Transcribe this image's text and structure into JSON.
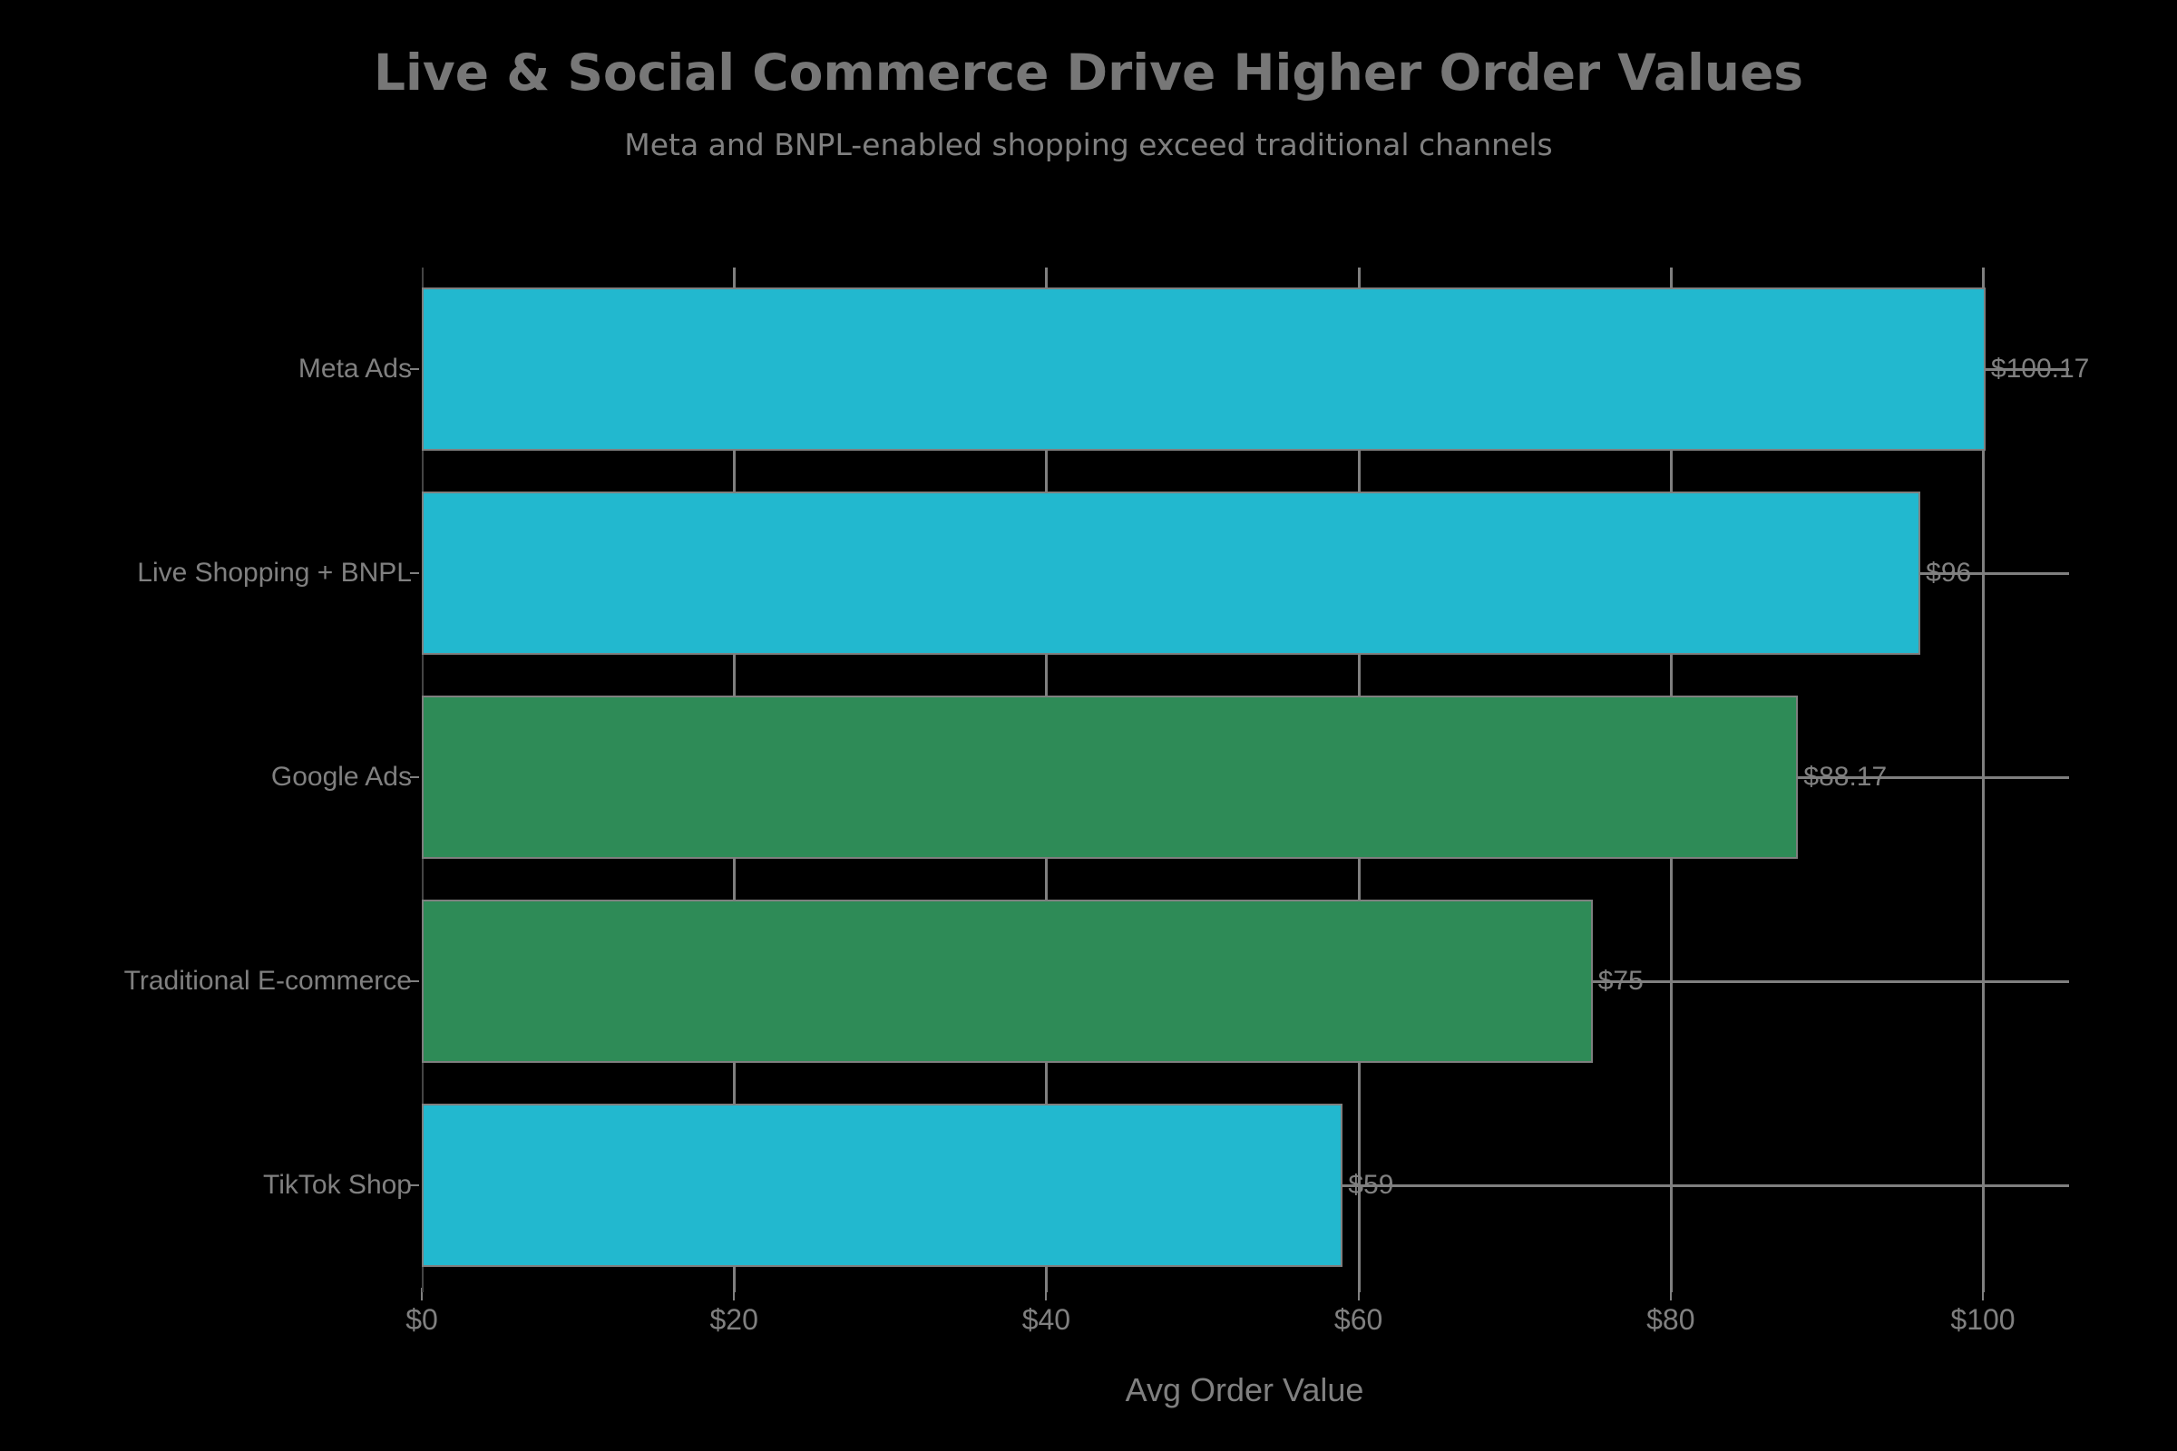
{
  "chart_data": {
    "type": "bar",
    "orientation": "horizontal",
    "title": "Live & Social Commerce Drive Higher Order Values",
    "subtitle": "Meta and BNPL-enabled shopping exceed traditional channels",
    "xlabel": "Avg Order Value",
    "ylabel": "",
    "categories": [
      "Meta Ads",
      "Live Shopping + BNPL",
      "Google Ads",
      "Traditional E-commerce",
      "TikTok Shop"
    ],
    "values": [
      100.17,
      96,
      88.17,
      75,
      59
    ],
    "value_labels": [
      "$100.17",
      "$96",
      "$88.17",
      "$75",
      "$59"
    ],
    "bar_colors": [
      "#22b8cf",
      "#22b8cf",
      "#2e8b57",
      "#2e8b57",
      "#22b8cf"
    ],
    "xticks": [
      "$0",
      "$20",
      "$40",
      "$60",
      "$80",
      "$100"
    ],
    "xtick_values": [
      0,
      20,
      40,
      60,
      80,
      100
    ],
    "xlim": [
      0,
      105.5
    ],
    "grid": true,
    "legend": null,
    "background": "#000000"
  }
}
